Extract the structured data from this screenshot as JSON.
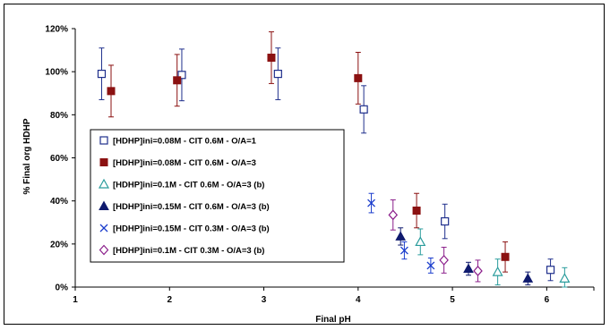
{
  "chart_data": {
    "type": "scatter",
    "title": "",
    "xlabel": "Final pH",
    "ylabel": "% Final org HDHP",
    "xlim": [
      1,
      6.5
    ],
    "ylim": [
      0,
      120
    ],
    "x_ticks": [
      "1",
      "2",
      "3",
      "4",
      "5",
      "6"
    ],
    "y_ticks": [
      "0%",
      "20%",
      "40%",
      "60%",
      "80%",
      "100%",
      "120%"
    ],
    "grid": false,
    "legend_position": "left-middle",
    "series": [
      {
        "name": "[HDHP]ini=0.08M - CIT 0.6M - O/A=1",
        "marker": "open-square",
        "color": "#1f2f8c",
        "points": [
          {
            "x": 1.28,
            "y": 99,
            "err": 12
          },
          {
            "x": 2.13,
            "y": 98.5,
            "err": 12
          },
          {
            "x": 3.15,
            "y": 99,
            "err": 12
          },
          {
            "x": 4.06,
            "y": 82.5,
            "err": 11
          },
          {
            "x": 4.92,
            "y": 30.5,
            "err": 8
          },
          {
            "x": 6.04,
            "y": 8,
            "err": 5
          }
        ]
      },
      {
        "name": "[HDHP]ini=0.08M - CIT 0.6M - O/A=3",
        "marker": "filled-square",
        "color": "#8b1111",
        "points": [
          {
            "x": 1.38,
            "y": 91,
            "err": 12
          },
          {
            "x": 2.08,
            "y": 96,
            "err": 12
          },
          {
            "x": 3.08,
            "y": 106.5,
            "err": 12
          },
          {
            "x": 4.0,
            "y": 97,
            "err": 12
          },
          {
            "x": 4.62,
            "y": 35.5,
            "err": 8
          },
          {
            "x": 5.56,
            "y": 14,
            "err": 7
          }
        ]
      },
      {
        "name": "[HDHP]ini=0.1M - CIT 0.6M - O/A=3 (b)",
        "marker": "open-triangle",
        "color": "#2a9c9c",
        "points": [
          {
            "x": 4.66,
            "y": 21,
            "err": 6
          },
          {
            "x": 5.48,
            "y": 7,
            "err": 6
          },
          {
            "x": 6.19,
            "y": 4,
            "err": 5
          }
        ]
      },
      {
        "name": "[HDHP]ini=0.15M - CIT 0.6M - O/A=3 (b)",
        "marker": "filled-triangle",
        "color": "#0f1a6e",
        "points": [
          {
            "x": 4.45,
            "y": 23.5,
            "err": 4
          },
          {
            "x": 5.17,
            "y": 8.5,
            "err": 3
          },
          {
            "x": 5.8,
            "y": 4,
            "err": 3
          }
        ]
      },
      {
        "name": "[HDHP]ini=0.15M - CIT 0.3M - O/A=3 (b)",
        "marker": "x",
        "color": "#1a3ccc",
        "points": [
          {
            "x": 4.14,
            "y": 39,
            "err": 4.5
          },
          {
            "x": 4.49,
            "y": 17,
            "err": 4
          },
          {
            "x": 4.77,
            "y": 10,
            "err": 3.5
          }
        ]
      },
      {
        "name": "[HDHP]ini=0.1M - CIT 0.3M - O/A=3 (b)",
        "marker": "open-diamond",
        "color": "#8b1f8b",
        "points": [
          {
            "x": 4.37,
            "y": 33.5,
            "err": 7
          },
          {
            "x": 4.91,
            "y": 12.5,
            "err": 6
          },
          {
            "x": 5.27,
            "y": 7.5,
            "err": 5
          }
        ]
      }
    ]
  }
}
